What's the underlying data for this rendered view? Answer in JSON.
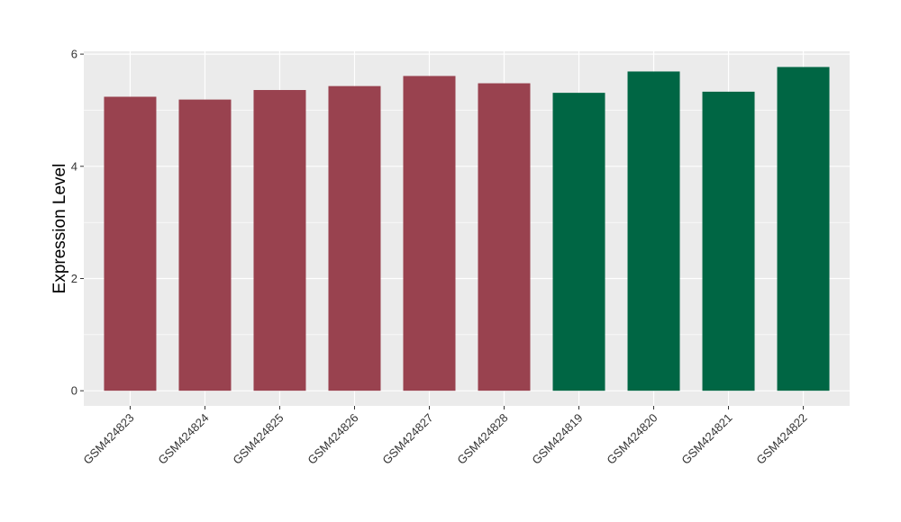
{
  "chart_data": {
    "type": "bar",
    "title": "",
    "xlabel": "",
    "ylabel": "Expression Level",
    "ylim": [
      -0.27,
      6.05
    ],
    "yticks": [
      0,
      2,
      4,
      6
    ],
    "ytick_labels": [
      "0",
      "2",
      "4",
      "6"
    ],
    "grid": true,
    "categories": [
      "GSM424823",
      "GSM424824",
      "GSM424825",
      "GSM424826",
      "GSM424827",
      "GSM424828",
      "GSM424819",
      "GSM424820",
      "GSM424821",
      "GSM424822"
    ],
    "values": [
      5.24,
      5.19,
      5.36,
      5.43,
      5.61,
      5.48,
      5.31,
      5.69,
      5.33,
      5.77
    ],
    "group_colors": [
      "#99424f",
      "#99424f",
      "#99424f",
      "#99424f",
      "#99424f",
      "#99424f",
      "#006644",
      "#006644",
      "#006644",
      "#006644"
    ],
    "panel_background": "#ebebeb",
    "grid_color": "#ffffff"
  }
}
